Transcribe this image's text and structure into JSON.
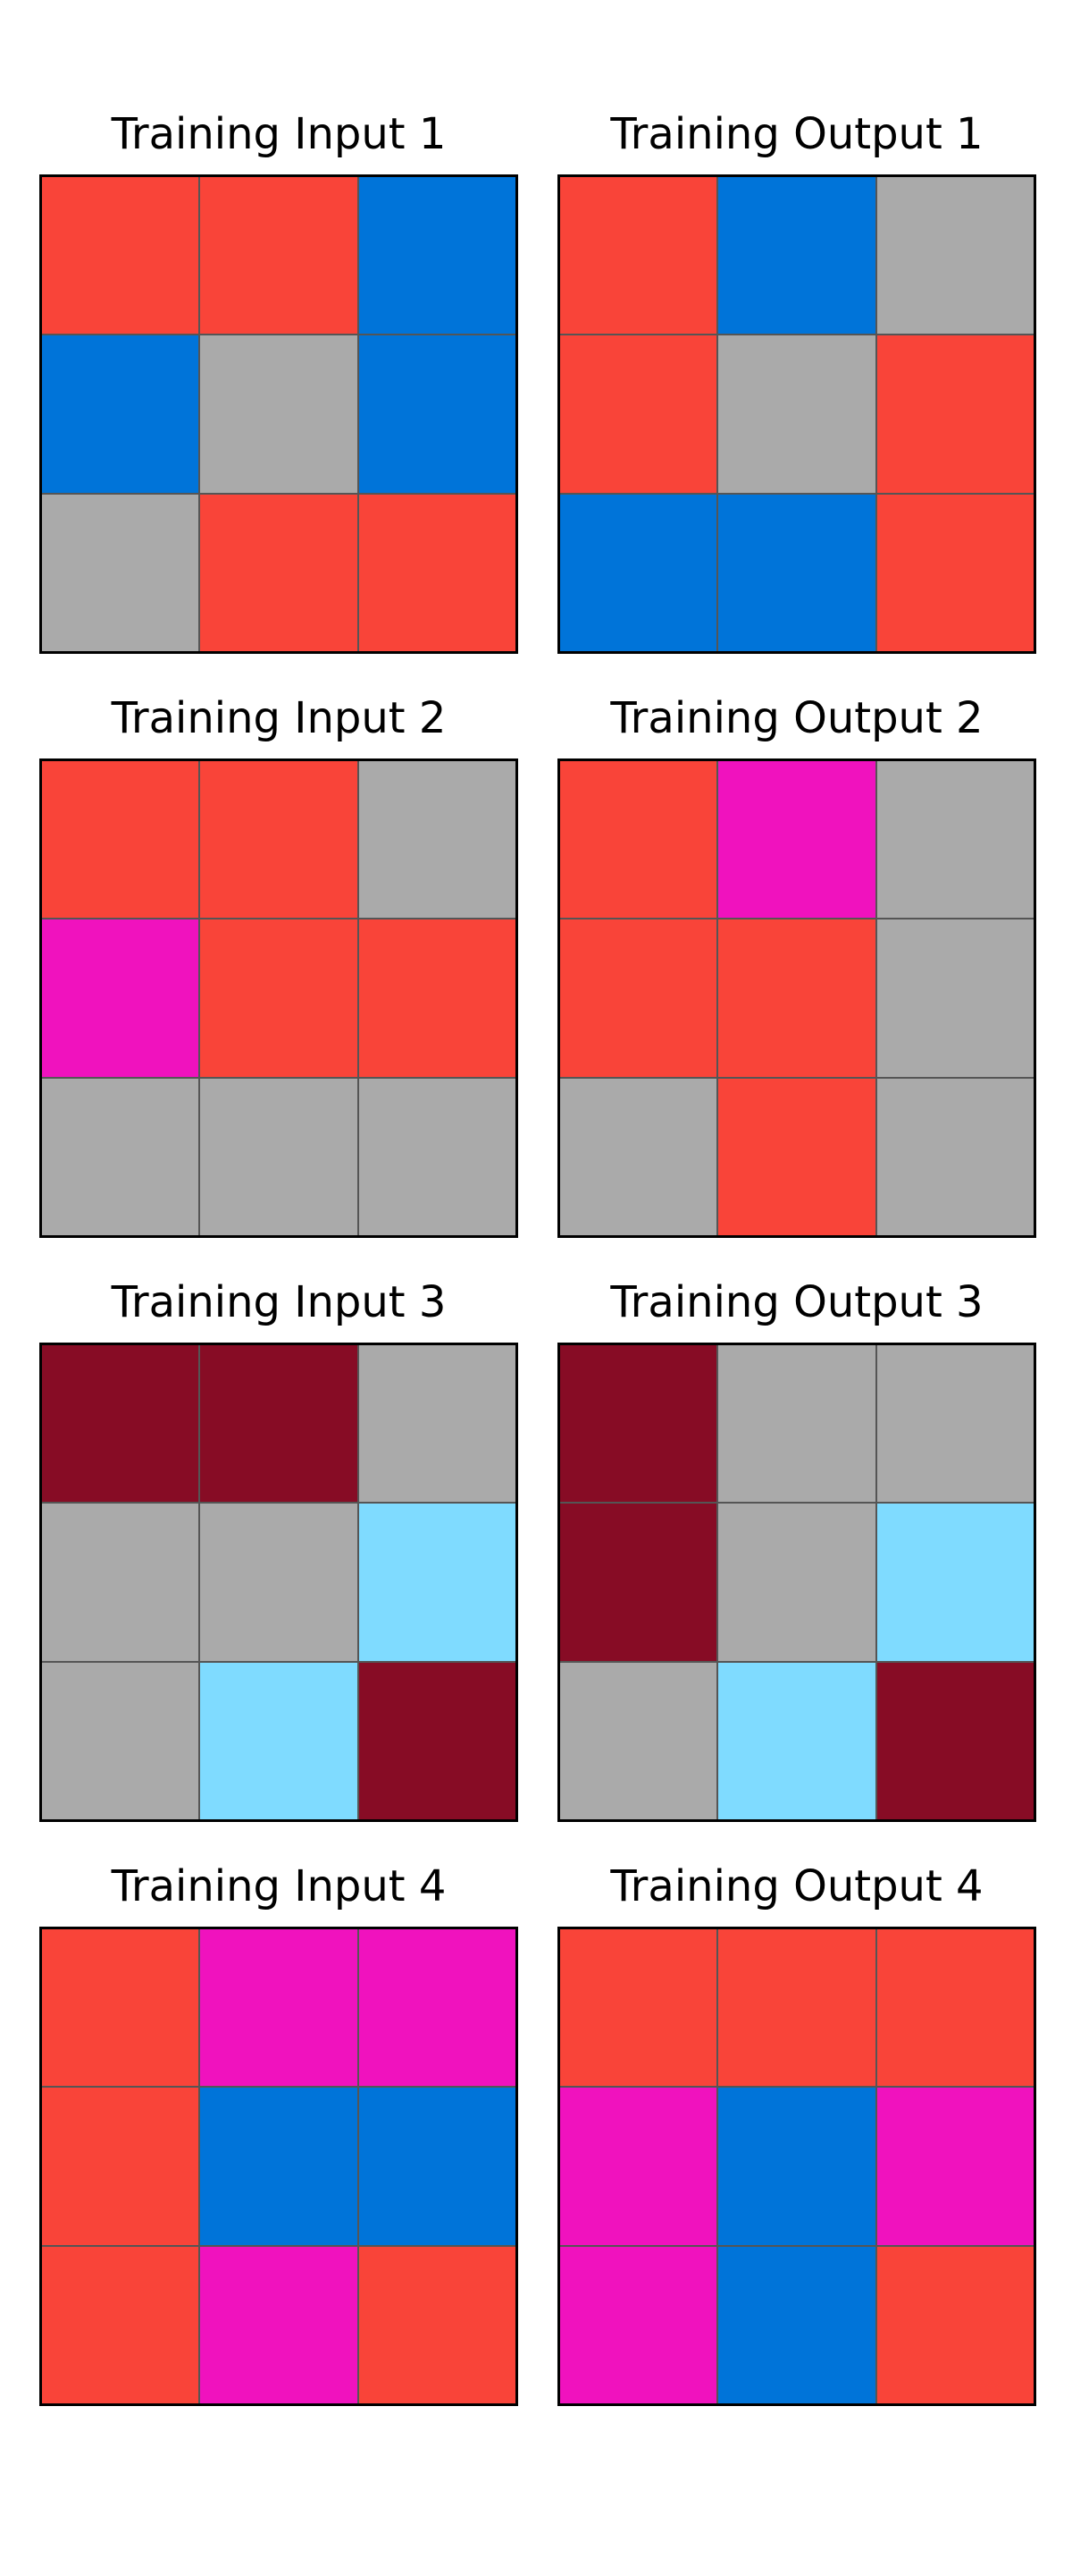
{
  "palette": {
    "red": "#F93C31",
    "blue": "#1E93FF",
    "gray": "#A8A7AA",
    "magenta": "#E53AA3",
    "maroon": "#921231",
    "lightblue": "#87D8F1"
  },
  "panels": [
    {
      "title": "Training Input 1",
      "grid": [
        [
          "red",
          "red",
          "blue"
        ],
        [
          "blue",
          "gray",
          "blue"
        ],
        [
          "gray",
          "red",
          "red"
        ]
      ]
    },
    {
      "title": "Training Output 1",
      "grid": [
        [
          "red",
          "blue",
          "gray"
        ],
        [
          "red",
          "gray",
          "red"
        ],
        [
          "blue",
          "blue",
          "red"
        ]
      ]
    },
    {
      "title": "Training Input 2",
      "grid": [
        [
          "red",
          "red",
          "gray"
        ],
        [
          "magenta",
          "red",
          "red"
        ],
        [
          "gray",
          "gray",
          "gray"
        ]
      ]
    },
    {
      "title": "Training Output 2",
      "grid": [
        [
          "red",
          "magenta",
          "gray"
        ],
        [
          "red",
          "red",
          "gray"
        ],
        [
          "gray",
          "red",
          "gray"
        ]
      ]
    },
    {
      "title": "Training Input 3",
      "grid": [
        [
          "maroon",
          "maroon",
          "gray"
        ],
        [
          "gray",
          "gray",
          "lightblue"
        ],
        [
          "gray",
          "lightblue",
          "maroon"
        ]
      ]
    },
    {
      "title": "Training Output 3",
      "grid": [
        [
          "maroon",
          "gray",
          "gray"
        ],
        [
          "maroon",
          "gray",
          "lightblue"
        ],
        [
          "gray",
          "lightblue",
          "maroon"
        ]
      ]
    },
    {
      "title": "Training Input 4",
      "grid": [
        [
          "red",
          "magenta",
          "magenta"
        ],
        [
          "red",
          "blue",
          "blue"
        ],
        [
          "red",
          "magenta",
          "red"
        ]
      ]
    },
    {
      "title": "Training Output 4",
      "grid": [
        [
          "red",
          "red",
          "red"
        ],
        [
          "magenta",
          "blue",
          "magenta"
        ],
        [
          "magenta",
          "blue",
          "red"
        ]
      ]
    }
  ]
}
